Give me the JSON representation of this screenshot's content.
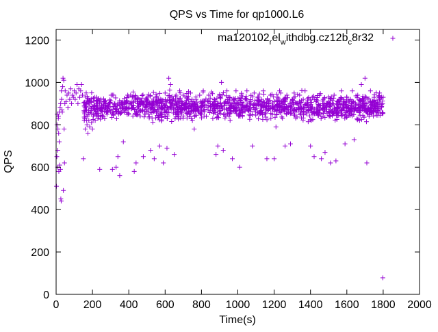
{
  "chart_data": {
    "type": "scatter",
    "title": "QPS vs Time for qp1000.L6",
    "xlabel": "Time(s)",
    "ylabel": "QPS",
    "xlim": [
      0,
      2000
    ],
    "ylim": [
      0,
      1250
    ],
    "xticks": [
      0,
      200,
      400,
      600,
      800,
      1000,
      1200,
      1400,
      1600,
      1800,
      2000
    ],
    "yticks": [
      0,
      200,
      400,
      600,
      800,
      1000,
      1200
    ],
    "grid": false,
    "legend_position": "top-right",
    "series": [
      {
        "name_parts": [
          "ma120102",
          "r",
          "el",
          "w",
          "ithdbg.cz12b",
          "c",
          "8r32"
        ],
        "color": "#9400d3",
        "marker": "plus",
        "points": [
          [
            2,
            510
          ],
          [
            4,
            650
          ],
          [
            5,
            800
          ],
          [
            6,
            850
          ],
          [
            8,
            600
          ],
          [
            9,
            680
          ],
          [
            10,
            780
          ],
          [
            12,
            830
          ],
          [
            13,
            840
          ],
          [
            14,
            760
          ],
          [
            15,
            580
          ],
          [
            17,
            720
          ],
          [
            18,
            860
          ],
          [
            20,
            610
          ],
          [
            22,
            880
          ],
          [
            24,
            590
          ],
          [
            25,
            900
          ],
          [
            26,
            450
          ],
          [
            28,
            440
          ],
          [
            29,
            960
          ],
          [
            30,
            920
          ],
          [
            32,
            870
          ],
          [
            34,
            860
          ],
          [
            36,
            980
          ],
          [
            38,
            1020
          ],
          [
            40,
            490
          ],
          [
            42,
            1010
          ],
          [
            44,
            780
          ],
          [
            46,
            620
          ],
          [
            48,
            900
          ],
          [
            50,
            960
          ],
          [
            55,
            910
          ],
          [
            60,
            940
          ],
          [
            65,
            880
          ],
          [
            70,
            950
          ],
          [
            75,
            920
          ],
          [
            80,
            970
          ],
          [
            85,
            900
          ],
          [
            90,
            940
          ],
          [
            95,
            930
          ],
          [
            100,
            960
          ],
          [
            105,
            920
          ],
          [
            110,
            950
          ],
          [
            115,
            990
          ],
          [
            120,
            900
          ],
          [
            125,
            970
          ],
          [
            130,
            930
          ],
          [
            135,
            960
          ],
          [
            140,
            990
          ],
          [
            145,
            940
          ],
          [
            150,
            640
          ],
          [
            155,
            820
          ],
          [
            160,
            780
          ],
          [
            165,
            840
          ],
          [
            170,
            800
          ],
          [
            175,
            760
          ],
          [
            180,
            820
          ],
          [
            185,
            790
          ],
          [
            190,
            860
          ],
          [
            195,
            810
          ],
          [
            200,
            780
          ],
          [
            205,
            840
          ],
          [
            210,
            870
          ],
          [
            215,
            820
          ],
          [
            220,
            850
          ],
          [
            225,
            880
          ],
          [
            230,
            830
          ],
          [
            240,
            590
          ],
          [
            250,
            880
          ],
          [
            260,
            840
          ],
          [
            270,
            900
          ],
          [
            280,
            850
          ],
          [
            290,
            880
          ],
          [
            300,
            860
          ],
          [
            310,
            590
          ],
          [
            320,
            900
          ],
          [
            330,
            600
          ],
          [
            340,
            650
          ],
          [
            350,
            560
          ],
          [
            360,
            900
          ],
          [
            370,
            720
          ],
          [
            380,
            870
          ],
          [
            390,
            910
          ],
          [
            400,
            850
          ],
          [
            410,
            940
          ],
          [
            420,
            880
          ],
          [
            430,
            580
          ],
          [
            440,
            620
          ],
          [
            450,
            900
          ],
          [
            460,
            860
          ],
          [
            470,
            910
          ],
          [
            480,
            650
          ],
          [
            490,
            880
          ],
          [
            500,
            920
          ],
          [
            510,
            870
          ],
          [
            520,
            680
          ],
          [
            530,
            900
          ],
          [
            540,
            640
          ],
          [
            550,
            930
          ],
          [
            560,
            880
          ],
          [
            570,
            700
          ],
          [
            580,
            900
          ],
          [
            590,
            620
          ],
          [
            600,
            950
          ],
          [
            610,
            690
          ],
          [
            620,
            1020
          ],
          [
            630,
            990
          ],
          [
            640,
            920
          ],
          [
            650,
            660
          ],
          [
            660,
            940
          ],
          [
            670,
            880
          ],
          [
            680,
            960
          ],
          [
            690,
            910
          ],
          [
            700,
            940
          ],
          [
            710,
            870
          ],
          [
            720,
            930
          ],
          [
            730,
            900
          ],
          [
            740,
            950
          ],
          [
            750,
            820
          ],
          [
            760,
            780
          ],
          [
            770,
            920
          ],
          [
            780,
            880
          ],
          [
            790,
            940
          ],
          [
            800,
            900
          ],
          [
            810,
            960
          ],
          [
            820,
            910
          ],
          [
            830,
            880
          ],
          [
            840,
            940
          ],
          [
            850,
            900
          ],
          [
            860,
            870
          ],
          [
            870,
            920
          ],
          [
            880,
            660
          ],
          [
            890,
            700
          ],
          [
            900,
            940
          ],
          [
            910,
            1000
          ],
          [
            920,
            680
          ],
          [
            930,
            900
          ],
          [
            940,
            960
          ],
          [
            950,
            930
          ],
          [
            960,
            880
          ],
          [
            970,
            640
          ],
          [
            980,
            920
          ],
          [
            990,
            960
          ],
          [
            1000,
            900
          ],
          [
            1010,
            600
          ],
          [
            1020,
            940
          ],
          [
            1030,
            880
          ],
          [
            1040,
            920
          ],
          [
            1050,
            960
          ],
          [
            1060,
            870
          ],
          [
            1070,
            910
          ],
          [
            1080,
            700
          ],
          [
            1090,
            950
          ],
          [
            1100,
            890
          ],
          [
            1110,
            930
          ],
          [
            1120,
            860
          ],
          [
            1130,
            920
          ],
          [
            1140,
            960
          ],
          [
            1150,
            880
          ],
          [
            1160,
            640
          ],
          [
            1170,
            910
          ],
          [
            1180,
            940
          ],
          [
            1190,
            880
          ],
          [
            1200,
            640
          ],
          [
            1210,
            790
          ],
          [
            1220,
            930
          ],
          [
            1230,
            960
          ],
          [
            1240,
            880
          ],
          [
            1250,
            920
          ],
          [
            1260,
            700
          ],
          [
            1270,
            940
          ],
          [
            1280,
            890
          ],
          [
            1290,
            710
          ],
          [
            1300,
            920
          ],
          [
            1310,
            950
          ],
          [
            1320,
            860
          ],
          [
            1330,
            900
          ],
          [
            1340,
            940
          ],
          [
            1350,
            880
          ],
          [
            1360,
            920
          ],
          [
            1370,
            960
          ],
          [
            1380,
            900
          ],
          [
            1390,
            870
          ],
          [
            1400,
            700
          ],
          [
            1410,
            930
          ],
          [
            1420,
            650
          ],
          [
            1430,
            910
          ],
          [
            1440,
            880
          ],
          [
            1450,
            940
          ],
          [
            1460,
            640
          ],
          [
            1470,
            920
          ],
          [
            1480,
            670
          ],
          [
            1490,
            900
          ],
          [
            1500,
            860
          ],
          [
            1510,
            620
          ],
          [
            1520,
            900
          ],
          [
            1530,
            940
          ],
          [
            1540,
            630
          ],
          [
            1550,
            880
          ],
          [
            1560,
            920
          ],
          [
            1570,
            960
          ],
          [
            1580,
            900
          ],
          [
            1590,
            710
          ],
          [
            1600,
            930
          ],
          [
            1610,
            880
          ],
          [
            1620,
            920
          ],
          [
            1630,
            960
          ],
          [
            1640,
            730
          ],
          [
            1650,
            890
          ],
          [
            1660,
            940
          ],
          [
            1670,
            820
          ],
          [
            1680,
            990
          ],
          [
            1690,
            900
          ],
          [
            1700,
            1020
          ],
          [
            1710,
            620
          ],
          [
            1720,
            880
          ],
          [
            1730,
            960
          ],
          [
            1740,
            890
          ],
          [
            1750,
            930
          ],
          [
            1760,
            860
          ],
          [
            1770,
            900
          ],
          [
            1780,
            950
          ],
          [
            1790,
            880
          ],
          [
            1800,
            930
          ],
          [
            1798,
            78
          ]
        ]
      }
    ],
    "band": {
      "x_start": 150,
      "x_end": 1800,
      "y_low": 820,
      "y_high": 950,
      "point_count": 1400
    }
  }
}
